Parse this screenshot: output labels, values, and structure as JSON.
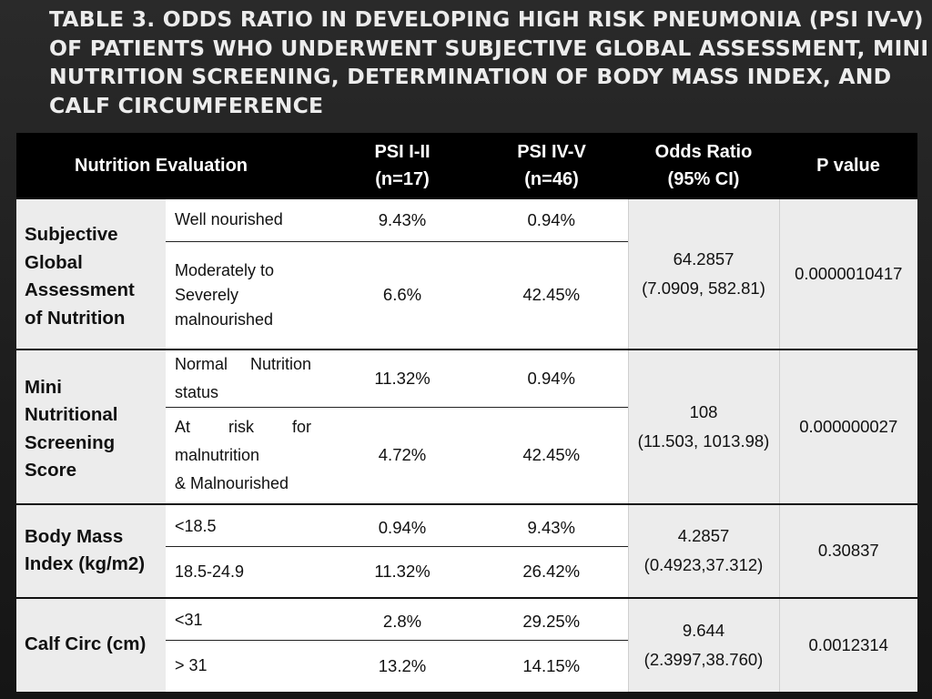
{
  "title": {
    "lines": [
      "Table 3. Odds ratio in developing high risk pneumonia  (PSI IV-V)",
      "of patients who underwent subjective global assessment, mini",
      "nutrition screening, determination of body mass index, and",
      "calf circumference"
    ]
  },
  "table": {
    "headers": {
      "evaluation": "Nutrition Evaluation",
      "psi_low_1": "PSI I-II",
      "psi_low_2": "(n=17)",
      "psi_high_1": "PSI IV-V",
      "psi_high_2": "(n=46)",
      "odds_1": "Odds Ratio",
      "odds_2": "(95% CI)",
      "pvalue": "P value"
    },
    "groups": [
      {
        "name": [
          "Subjective",
          "Global",
          "Assessment",
          "of Nutrition"
        ],
        "rows": [
          {
            "label": "Well nourished",
            "psi_low": "9.43%",
            "psi_high": "0.94%"
          },
          {
            "label": [
              "Moderately to",
              "Severely",
              "malnourished"
            ],
            "psi_low": "6.6%",
            "psi_high": "42.45%"
          }
        ],
        "odds_ratio": "64.2857",
        "ci": "(7.0909, 582.81)",
        "p_value": "0.0000010417"
      },
      {
        "name": [
          "Mini",
          "Nutritional",
          "Screening",
          "Score"
        ],
        "rows": [
          {
            "label": [
              "Normal",
              "Nutrition",
              "status"
            ],
            "psi_low": "11.32%",
            "psi_high": "0.94%"
          },
          {
            "label": [
              "At",
              "risk",
              "for",
              "malnutrition",
              "& Malnourished"
            ],
            "psi_low": "4.72%",
            "psi_high": "42.45%"
          }
        ],
        "odds_ratio": "108",
        "ci": "(11.503, 1013.98)",
        "p_value": "0.000000027"
      },
      {
        "name": [
          "Body Mass",
          "Index (kg/m2)"
        ],
        "rows": [
          {
            "label": "<18.5",
            "psi_low": "0.94%",
            "psi_high": "9.43%"
          },
          {
            "label": "18.5-24.9",
            "psi_low": "11.32%",
            "psi_high": "26.42%"
          }
        ],
        "odds_ratio": "4.2857",
        "ci": "(0.4923,37.312)",
        "p_value": "0.30837"
      },
      {
        "name": [
          "Calf Circ (cm)"
        ],
        "rows": [
          {
            "label": "<31",
            "psi_low": "2.8%",
            "psi_high": "29.25%"
          },
          {
            "label": "> 31",
            "psi_low": "13.2%",
            "psi_high": "14.15%"
          }
        ],
        "odds_ratio": "9.644",
        "ci": "(2.3997,38.760)",
        "p_value": "0.0012314"
      }
    ]
  }
}
